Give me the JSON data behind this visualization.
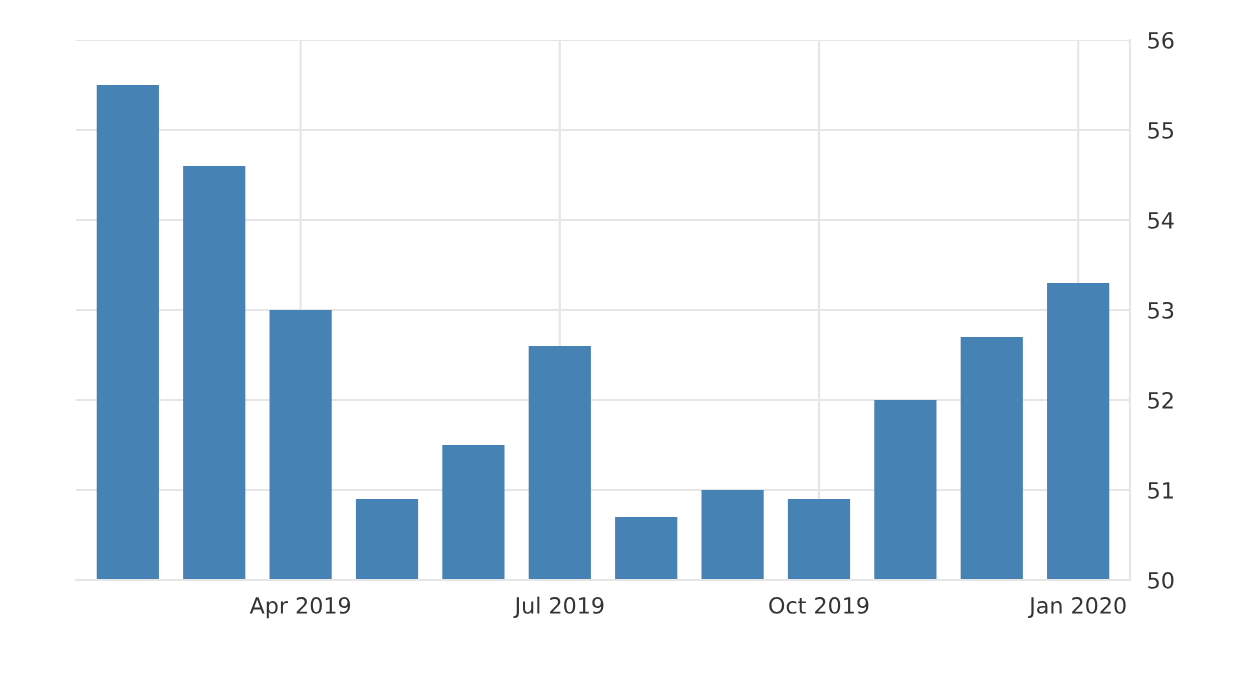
{
  "chart_data": {
    "type": "bar",
    "categories": [
      null,
      null,
      "Apr 2019",
      null,
      null,
      "Jul 2019",
      null,
      null,
      "Oct 2019",
      null,
      null,
      "Jan 2020"
    ],
    "values": [
      55.5,
      54.6,
      53.0,
      50.9,
      51.5,
      52.6,
      50.7,
      51.0,
      50.9,
      52.0,
      52.7,
      53.3
    ],
    "color": "#4682b4",
    "ylim": [
      50,
      56
    ],
    "yticks": [
      50,
      51,
      52,
      53,
      54,
      55,
      56
    ],
    "grid": true
  }
}
